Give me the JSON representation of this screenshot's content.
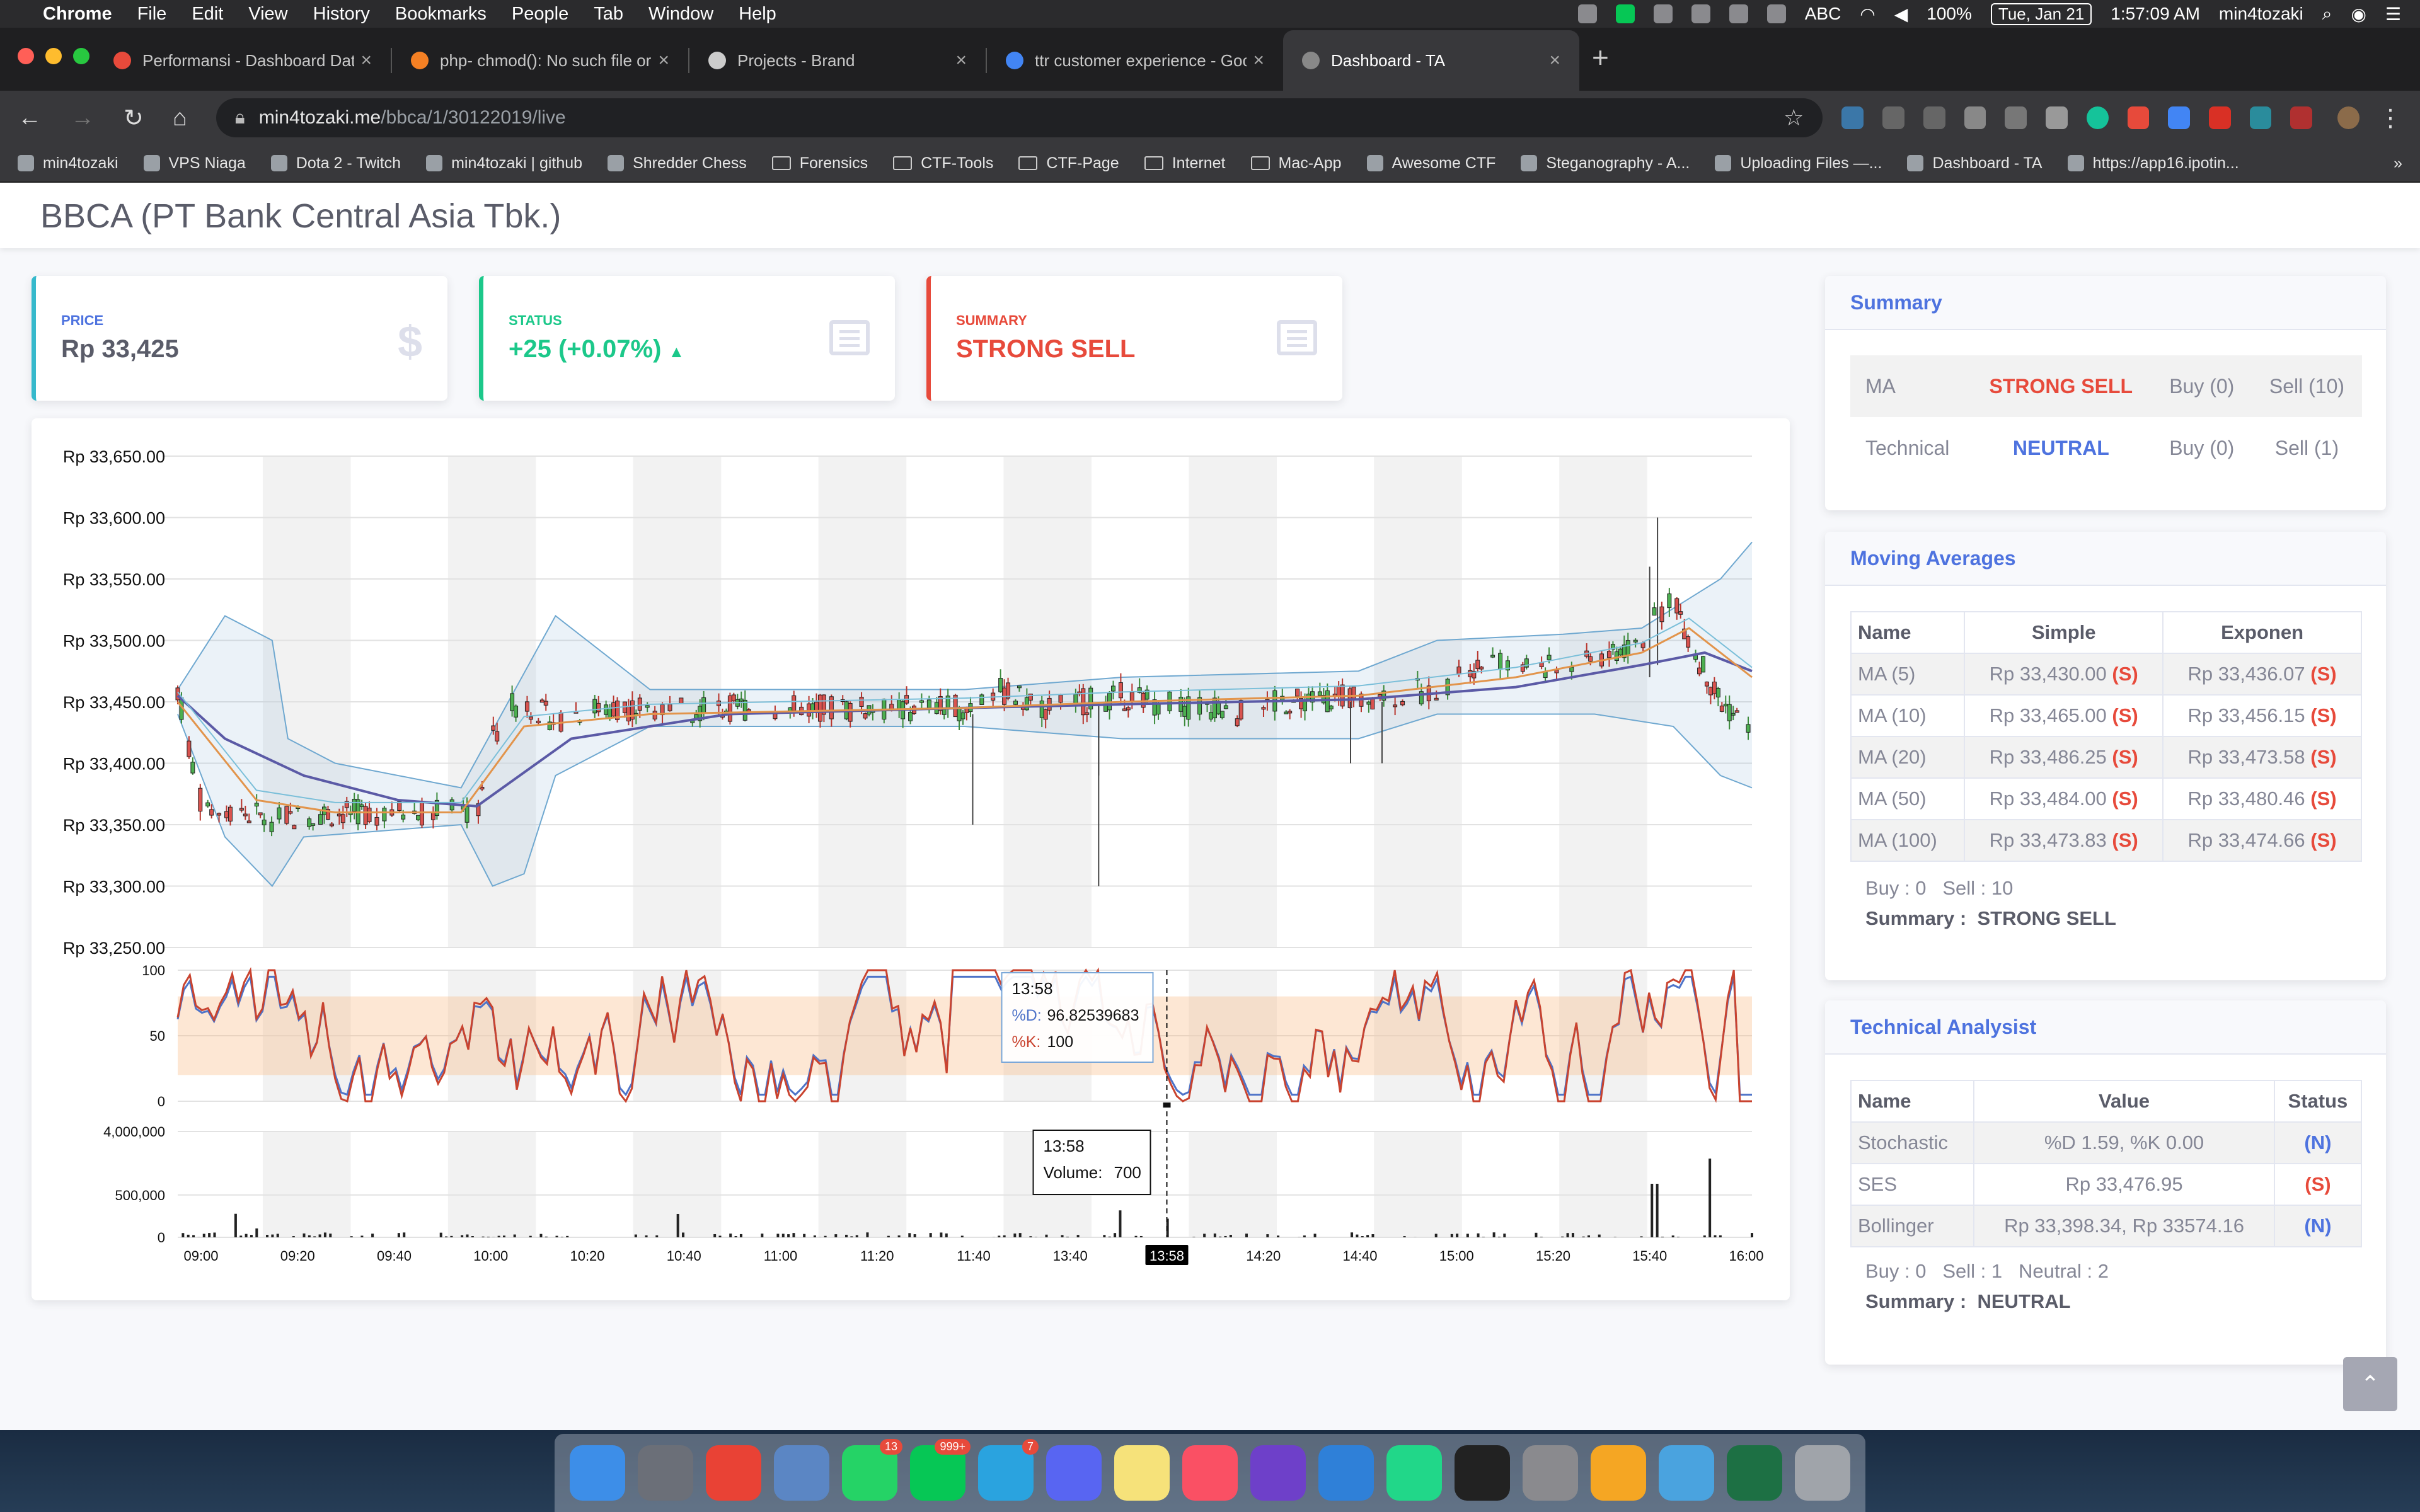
{
  "menubar": {
    "app": "Chrome",
    "items": [
      "File",
      "Edit",
      "View",
      "History",
      "Bookmarks",
      "People",
      "Tab",
      "Window",
      "Help"
    ],
    "input_source": "ABC",
    "battery": "100%",
    "date": "Tue, Jan 21",
    "time": "1:57:09 AM",
    "user": "min4tozaki"
  },
  "tabs": [
    {
      "title": "Performansi - Dashboard Datin",
      "close": "×",
      "favicon_color": "#e74a3b"
    },
    {
      "title": "php- chmod(): No such file or di",
      "close": "×",
      "favicon_color": "#f48024"
    },
    {
      "title": "Projects - Brand",
      "close": "×",
      "favicon_color": "#cccccc"
    },
    {
      "title": "ttr customer experience - Googl",
      "close": "×",
      "favicon_color": "#4285f4"
    },
    {
      "title": "Dashboard - TA",
      "close": "×",
      "favicon_color": "#888888"
    }
  ],
  "toolbar": {
    "url_host": "min4tozaki.me",
    "url_path": "/bbca/1/30122019/live",
    "back": "←",
    "forward": "→",
    "reload": "↻",
    "home": "⌂",
    "star": "☆",
    "new_tab": "+"
  },
  "bookmarks": [
    "min4tozaki",
    "VPS Niaga",
    "Dota 2 - Twitch",
    "min4tozaki | github",
    "Shredder Chess",
    "Forensics",
    "CTF-Tools",
    "CTF-Page",
    "Internet",
    "Mac-App",
    "Awesome CTF",
    "Steganography - A...",
    "Uploading Files —...",
    "Dashboard - TA",
    "https://app16.ipotin...",
    "»"
  ],
  "page": {
    "title": "BBCA (PT Bank Central Asia Tbk.)"
  },
  "stats": {
    "price": {
      "label": "PRICE",
      "value": "Rp 33,425",
      "icon": "$",
      "color": "#36b9cc"
    },
    "status": {
      "label": "STATUS",
      "value": "+25 (+0.07%)",
      "arrow": "▲",
      "color": "#1cc88a"
    },
    "summary": {
      "label": "SUMMARY",
      "value": "STRONG SELL",
      "color": "#e74a3b"
    }
  },
  "summary_panel": {
    "title": "Summary",
    "rows": [
      {
        "name": "MA",
        "signal": "STRONG SELL",
        "buy": "Buy (0)",
        "sell": "Sell (10)"
      },
      {
        "name": "Technical",
        "signal": "NEUTRAL",
        "buy": "Buy (0)",
        "sell": "Sell (1)"
      }
    ]
  },
  "ma_panel": {
    "title": "Moving Averages",
    "headers": [
      "Name",
      "Simple",
      "Exponen"
    ],
    "rows": [
      {
        "name": "MA (5)",
        "simple": "Rp 33,430.00",
        "s_flag": "(S)",
        "exp": "Rp 33,436.07",
        "e_flag": "(S)"
      },
      {
        "name": "MA (10)",
        "simple": "Rp 33,465.00",
        "s_flag": "(S)",
        "exp": "Rp 33,456.15",
        "e_flag": "(S)"
      },
      {
        "name": "MA (20)",
        "simple": "Rp 33,486.25",
        "s_flag": "(S)",
        "exp": "Rp 33,473.58",
        "e_flag": "(S)"
      },
      {
        "name": "MA (50)",
        "simple": "Rp 33,484.00",
        "s_flag": "(S)",
        "exp": "Rp 33,480.46",
        "e_flag": "(S)"
      },
      {
        "name": "MA (100)",
        "simple": "Rp 33,473.83",
        "s_flag": "(S)",
        "exp": "Rp 33,474.66",
        "e_flag": "(S)"
      }
    ],
    "buy": "Buy : 0",
    "sell": "Sell : 10",
    "summary_label": "Summary :",
    "summary_value": "STRONG SELL"
  },
  "ta_panel": {
    "title": "Technical Analysist",
    "headers": [
      "Name",
      "Value",
      "Status"
    ],
    "rows": [
      {
        "name": "Stochastic",
        "value": "%D 1.59, %K 0.00",
        "status": "(N)"
      },
      {
        "name": "SES",
        "value": "Rp 33,476.95",
        "status": "(S)"
      },
      {
        "name": "Bollinger",
        "value": "Rp 33,398.34, Rp 33574.16",
        "status": "(N)"
      }
    ],
    "buy": "Buy : 0",
    "sell": "Sell : 1",
    "neutral": "Neutral : 2",
    "summary_label": "Summary :",
    "summary_value": "NEUTRAL"
  },
  "scroll_top": "⌃",
  "dock": [
    {
      "c": "#3d8ee8"
    },
    {
      "c": "#6b6f78"
    },
    {
      "c": "#e94235"
    },
    {
      "c": "#5b86c4"
    },
    {
      "c": "#25d366",
      "badge": "13"
    },
    {
      "c": "#06c755",
      "badge": "999+"
    },
    {
      "c": "#2aa3df",
      "badge": "7"
    },
    {
      "c": "#5865f2"
    },
    {
      "c": "#f6e27a"
    },
    {
      "c": "#fa5064"
    },
    {
      "c": "#6e40c9"
    },
    {
      "c": "#2f80d8"
    },
    {
      "c": "#21d789"
    },
    {
      "c": "#222222"
    },
    {
      "c": "#8a8a8e"
    },
    {
      "c": "#f5a623"
    },
    {
      "c": "#4aa3df"
    },
    {
      "c": "#1d7044"
    },
    {
      "c": "#a0a4aa"
    }
  ],
  "chart_data": [
    {
      "type": "candlestick",
      "ylim": [
        33250,
        33650
      ],
      "yticks": [
        "Rp 33,650.00",
        "Rp 33,600.00",
        "Rp 33,550.00",
        "Rp 33,500.00",
        "Rp 33,450.00",
        "Rp 33,400.00",
        "Rp 33,350.00",
        "Rp 33,300.00",
        "Rp 33,250.00"
      ],
      "xticks": [
        "09:00",
        "09:20",
        "09:40",
        "10:00",
        "10:20",
        "10:40",
        "11:00",
        "11:20",
        "11:40",
        "13:40",
        "13:58",
        "14:20",
        "14:40",
        "15:00",
        "15:20",
        "15:40",
        "16:00"
      ],
      "price_path": [
        [
          0,
          33460
        ],
        [
          0.015,
          33365
        ],
        [
          0.06,
          33355
        ],
        [
          0.1,
          33360
        ],
        [
          0.15,
          33360
        ],
        [
          0.19,
          33360
        ],
        [
          0.2,
          33420
        ],
        [
          0.21,
          33445
        ],
        [
          0.22,
          33450
        ],
        [
          0.24,
          33435
        ],
        [
          0.26,
          33445
        ],
        [
          0.3,
          33445
        ],
        [
          0.35,
          33445
        ],
        [
          0.4,
          33445
        ],
        [
          0.45,
          33445
        ],
        [
          0.5,
          33445
        ],
        [
          0.52,
          33460
        ],
        [
          0.55,
          33445
        ],
        [
          0.6,
          33455
        ],
        [
          0.62,
          33450
        ],
        [
          0.68,
          33440
        ],
        [
          0.7,
          33450
        ],
        [
          0.76,
          33455
        ],
        [
          0.8,
          33460
        ],
        [
          0.82,
          33480
        ],
        [
          0.86,
          33480
        ],
        [
          0.88,
          33475
        ],
        [
          0.9,
          33485
        ],
        [
          0.93,
          33500
        ],
        [
          0.95,
          33540
        ],
        [
          0.96,
          33500
        ],
        [
          0.98,
          33450
        ],
        [
          1,
          33425
        ]
      ],
      "bollinger_upper": [
        [
          0,
          33460
        ],
        [
          0.03,
          33520
        ],
        [
          0.06,
          33500
        ],
        [
          0.07,
          33420
        ],
        [
          0.1,
          33400
        ],
        [
          0.18,
          33380
        ],
        [
          0.21,
          33450
        ],
        [
          0.24,
          33520
        ],
        [
          0.26,
          33500
        ],
        [
          0.3,
          33460
        ],
        [
          0.5,
          33460
        ],
        [
          0.6,
          33470
        ],
        [
          0.75,
          33475
        ],
        [
          0.8,
          33500
        ],
        [
          0.88,
          33505
        ],
        [
          0.93,
          33510
        ],
        [
          0.98,
          33550
        ],
        [
          1,
          33580
        ]
      ],
      "bollinger_lower": [
        [
          0,
          33440
        ],
        [
          0.03,
          33340
        ],
        [
          0.06,
          33300
        ],
        [
          0.08,
          33340
        ],
        [
          0.18,
          33350
        ],
        [
          0.2,
          33300
        ],
        [
          0.22,
          33310
        ],
        [
          0.24,
          33390
        ],
        [
          0.3,
          33430
        ],
        [
          0.5,
          33430
        ],
        [
          0.6,
          33420
        ],
        [
          0.75,
          33420
        ],
        [
          0.8,
          33440
        ],
        [
          0.9,
          33440
        ],
        [
          0.95,
          33430
        ],
        [
          0.98,
          33390
        ],
        [
          1,
          33380
        ]
      ],
      "ma_fast": [
        [
          0,
          33450
        ],
        [
          0.05,
          33370
        ],
        [
          0.1,
          33360
        ],
        [
          0.18,
          33360
        ],
        [
          0.22,
          33430
        ],
        [
          0.3,
          33440
        ],
        [
          0.5,
          33445
        ],
        [
          0.6,
          33450
        ],
        [
          0.75,
          33455
        ],
        [
          0.85,
          33470
        ],
        [
          0.93,
          33490
        ],
        [
          0.96,
          33510
        ],
        [
          1,
          33470
        ]
      ],
      "ma_slow": [
        [
          0,
          33455
        ],
        [
          0.03,
          33420
        ],
        [
          0.08,
          33390
        ],
        [
          0.14,
          33370
        ],
        [
          0.19,
          33365
        ],
        [
          0.25,
          33420
        ],
        [
          0.35,
          33440
        ],
        [
          0.5,
          33445
        ],
        [
          0.6,
          33448
        ],
        [
          0.75,
          33452
        ],
        [
          0.85,
          33462
        ],
        [
          0.93,
          33480
        ],
        [
          0.97,
          33490
        ],
        [
          1,
          33475
        ]
      ]
    },
    {
      "type": "line",
      "name": "stochastic",
      "ylim": [
        0,
        100
      ],
      "yticks": [
        "100",
        "50",
        "0"
      ],
      "band": [
        20,
        80
      ],
      "tooltip": {
        "time": "13:58",
        "d_label": "%D:",
        "d_value": "96.82539683",
        "k_label": "%K:",
        "k_value": "100"
      }
    },
    {
      "type": "bar",
      "name": "volume",
      "ylim": [
        0,
        4000000
      ],
      "yticks": [
        "4,000,000",
        "500,000",
        "0"
      ],
      "tooltip": {
        "time": "13:58",
        "label": "Volume:",
        "value": "700"
      },
      "cursor_label": "13:58"
    }
  ]
}
